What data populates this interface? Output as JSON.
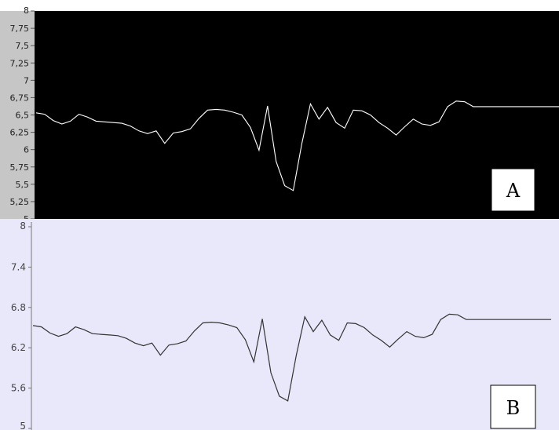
{
  "chart_data": [
    {
      "type": "line",
      "panel_label": "A",
      "ylim": [
        5,
        8
      ],
      "yticks": [
        "8",
        "7,75",
        "7,5",
        "7,25",
        "7",
        "6,75",
        "6,5",
        "6,25",
        "6",
        "5,75",
        "5,5",
        "5,25",
        "5"
      ],
      "ytick_values": [
        8,
        7.75,
        7.5,
        7.25,
        7,
        6.75,
        6.5,
        6.25,
        6,
        5.75,
        5.5,
        5.25,
        5
      ],
      "background": "#000000",
      "line_color": "#ffffff",
      "grid": false
    },
    {
      "type": "line",
      "panel_label": "B",
      "ylim": [
        5,
        8
      ],
      "yticks": [
        "8",
        "7.4",
        "6.8",
        "6.2",
        "5.6",
        "5"
      ],
      "ytick_values": [
        8,
        7.4,
        6.8,
        6.2,
        5.6,
        5
      ],
      "background": "#e8e8fa",
      "line_color": "#333333",
      "grid": false
    }
  ],
  "series_values": [
    6.53,
    6.51,
    6.42,
    6.37,
    6.41,
    6.51,
    6.47,
    6.41,
    6.4,
    6.39,
    6.38,
    6.34,
    6.27,
    6.23,
    6.27,
    6.09,
    6.24,
    6.26,
    6.3,
    6.45,
    6.57,
    6.58,
    6.57,
    6.54,
    6.5,
    6.32,
    5.99,
    6.63,
    5.83,
    5.48,
    5.41,
    6.09,
    6.66,
    6.44,
    6.61,
    6.39,
    6.31,
    6.57,
    6.56,
    6.5,
    6.39,
    6.31,
    6.21,
    6.33,
    6.44,
    6.37,
    6.35,
    6.4,
    6.62,
    6.7,
    6.69,
    6.62,
    6.62,
    6.62,
    6.62,
    6.62,
    6.62,
    6.62,
    6.62,
    6.62,
    6.62,
    6.62
  ]
}
